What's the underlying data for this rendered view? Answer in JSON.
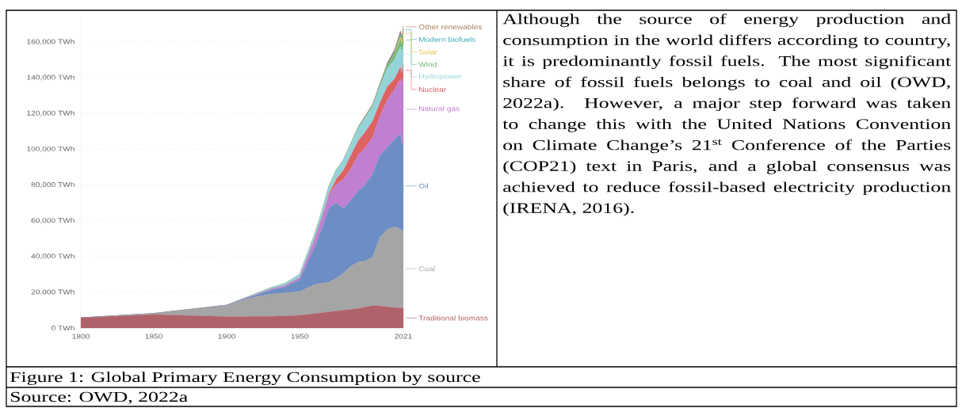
{
  "chart_data": {
    "type": "area",
    "stacked": true,
    "grid": "y",
    "legend": "right",
    "title": "Figure 1: Global Primary Energy Consumption by source",
    "annotations": [
      "Although the source of energy production and consumption in the world differs according to country, it is predominantly fossil fuels. The most significant share of fossil fuels belongs to coal and oil (OWD, 2022a). However, a major step forward was taken to change this with the United Nations Convention on Climate Change’s 21$^{st}$ Conference of the Parties (COP21) text in Paris, and a global consensus was achieved to reduce fossil-based electricity production (IRENA, 2016).",
      "Source: OWD, 2022a"
    ],
    "x": [
      1800,
      1850,
      1900,
      1910,
      1920,
      1930,
      1940,
      1950,
      1960,
      1965,
      1970,
      1975,
      1980,
      1985,
      1990,
      1995,
      2000,
      2005,
      2010,
      2015,
      2019,
      2020,
      2021
    ],
    "xlim": [
      1800,
      2021
    ],
    "xticks": [
      1800,
      1850,
      1900,
      1950,
      2021
    ],
    "ylim": [
      0,
      175000
    ],
    "yticks": [
      {
        "value": 0,
        "label": "0 TWh"
      },
      {
        "value": 20000,
        "label": "20,000 TWh"
      },
      {
        "value": 40000,
        "label": "40,000 TWh"
      },
      {
        "value": 60000,
        "label": "60,000 TWh"
      },
      {
        "value": 80000,
        "label": "80,000 TWh"
      },
      {
        "value": 100000,
        "label": "100,000 TWh"
      },
      {
        "value": 120000,
        "label": "120,000 TWh"
      },
      {
        "value": 140000,
        "label": "140,000 TWh"
      },
      {
        "value": 160000,
        "label": "160,000 TWh"
      }
    ],
    "series": [
      {
        "name": "Traditional biomass",
        "color": "#b0626a",
        "values": [
          5600,
          7500,
          6400,
          6400,
          6500,
          6500,
          6800,
          7100,
          8000,
          8500,
          9000,
          9500,
          10000,
          10400,
          10800,
          11700,
          12600,
          12300,
          11800,
          11400,
          11200,
          11100,
          11200
        ]
      },
      {
        "name": "Coal",
        "color": "#a5a5a5",
        "values": [
          100,
          600,
          5900,
          8800,
          10900,
          12400,
          12800,
          13300,
          16100,
          16500,
          16600,
          18300,
          20700,
          24000,
          26100,
          25700,
          27000,
          38400,
          43300,
          45200,
          44200,
          42500,
          43900
        ]
      },
      {
        "name": "Oil",
        "color": "#6c8ec4",
        "values": [
          0,
          0,
          200,
          400,
          1000,
          2200,
          3300,
          6600,
          20700,
          30100,
          41300,
          42100,
          36200,
          36900,
          39600,
          42800,
          46500,
          45800,
          45800,
          48700,
          53200,
          48800,
          48700
        ]
      },
      {
        "name": "Natural gas",
        "color": "#c07fd0",
        "values": [
          0,
          0,
          100,
          200,
          300,
          600,
          900,
          1200,
          4400,
          5900,
          7400,
          10300,
          16300,
          17800,
          20000,
          20700,
          20700,
          22100,
          26600,
          28100,
          30700,
          33900,
          37000
        ]
      },
      {
        "name": "Nuclear",
        "color": "#dd6262",
        "values": [
          0,
          0,
          0,
          0,
          0,
          0,
          0,
          0,
          0,
          200,
          700,
          3000,
          5100,
          7400,
          8100,
          8900,
          8900,
          7400,
          7400,
          5900,
          6600,
          5900,
          6600
        ]
      },
      {
        "name": "Hydropower",
        "color": "#94d4d8",
        "values": [
          0,
          0,
          200,
          300,
          500,
          800,
          1200,
          1900,
          2800,
          3500,
          4300,
          5100,
          5800,
          6600,
          7200,
          8000,
          8500,
          9200,
          10300,
          11000,
          11800,
          11600,
          11200
        ]
      },
      {
        "name": "Wind",
        "color": "#6fb56f",
        "values": [
          0,
          0,
          0,
          0,
          0,
          0,
          0,
          0,
          0,
          0,
          0,
          0,
          0,
          0,
          0,
          0,
          100,
          300,
          900,
          2200,
          3700,
          4200,
          4900
        ]
      },
      {
        "name": "Solar",
        "color": "#e3bf4a",
        "values": [
          0,
          0,
          0,
          0,
          0,
          0,
          0,
          0,
          0,
          0,
          0,
          0,
          0,
          0,
          0,
          0,
          0,
          0,
          100,
          700,
          1900,
          2200,
          2700
        ]
      },
      {
        "name": "Modern biofuels",
        "color": "#3aa9b8",
        "values": [
          0,
          0,
          0,
          0,
          0,
          0,
          0,
          0,
          0,
          0,
          0,
          0,
          0,
          0,
          200,
          300,
          300,
          500,
          1000,
          1100,
          1300,
          1200,
          1200
        ]
      },
      {
        "name": "Other renewables",
        "color": "#a5825e",
        "values": [
          0,
          0,
          0,
          0,
          0,
          0,
          0,
          0,
          0,
          100,
          100,
          200,
          300,
          400,
          600,
          700,
          800,
          1000,
          1200,
          1500,
          1800,
          1900,
          2000
        ]
      }
    ]
  }
}
